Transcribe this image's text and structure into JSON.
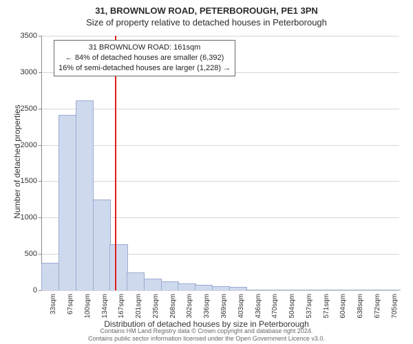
{
  "title": "31, BROWNLOW ROAD, PETERBOROUGH, PE1 3PN",
  "subtitle": "Size of property relative to detached houses in Peterborough",
  "y_axis_title": "Number of detached properties",
  "x_axis_title": "Distribution of detached houses by size in Peterborough",
  "footer_line1": "Contains HM Land Registry data © Crown copyright and database right 2024.",
  "footer_line2": "Contains public sector information licensed under the Open Government Licence v3.0.",
  "annotation": {
    "line1": "31 BROWNLOW ROAD: 161sqm",
    "line2": "← 84% of detached houses are smaller (6,392)",
    "line3": "16% of semi-detached houses are larger (1,228) →"
  },
  "chart": {
    "type": "histogram",
    "ylim": [
      0,
      3500
    ],
    "ytick_step": 500,
    "bar_fill": "#cfd9ee",
    "bar_stroke": "#9aaad0",
    "marker_color": "#e11b1b",
    "marker_x_value": 161,
    "background": "#ffffff",
    "grid_color": "#d6d6d6",
    "axis_color": "#888888",
    "label_fontsize": 10,
    "axis_fontsize": 12,
    "x_categories": [
      "33sqm",
      "67sqm",
      "100sqm",
      "134sqm",
      "167sqm",
      "201sqm",
      "235sqm",
      "268sqm",
      "302sqm",
      "336sqm",
      "369sqm",
      "403sqm",
      "436sqm",
      "470sqm",
      "504sqm",
      "537sqm",
      "571sqm",
      "604sqm",
      "638sqm",
      "672sqm",
      "705sqm"
    ],
    "values": [
      370,
      2400,
      2600,
      1240,
      620,
      240,
      150,
      110,
      90,
      70,
      50,
      40,
      0,
      0,
      0,
      0,
      0,
      0,
      0,
      0,
      0
    ]
  }
}
